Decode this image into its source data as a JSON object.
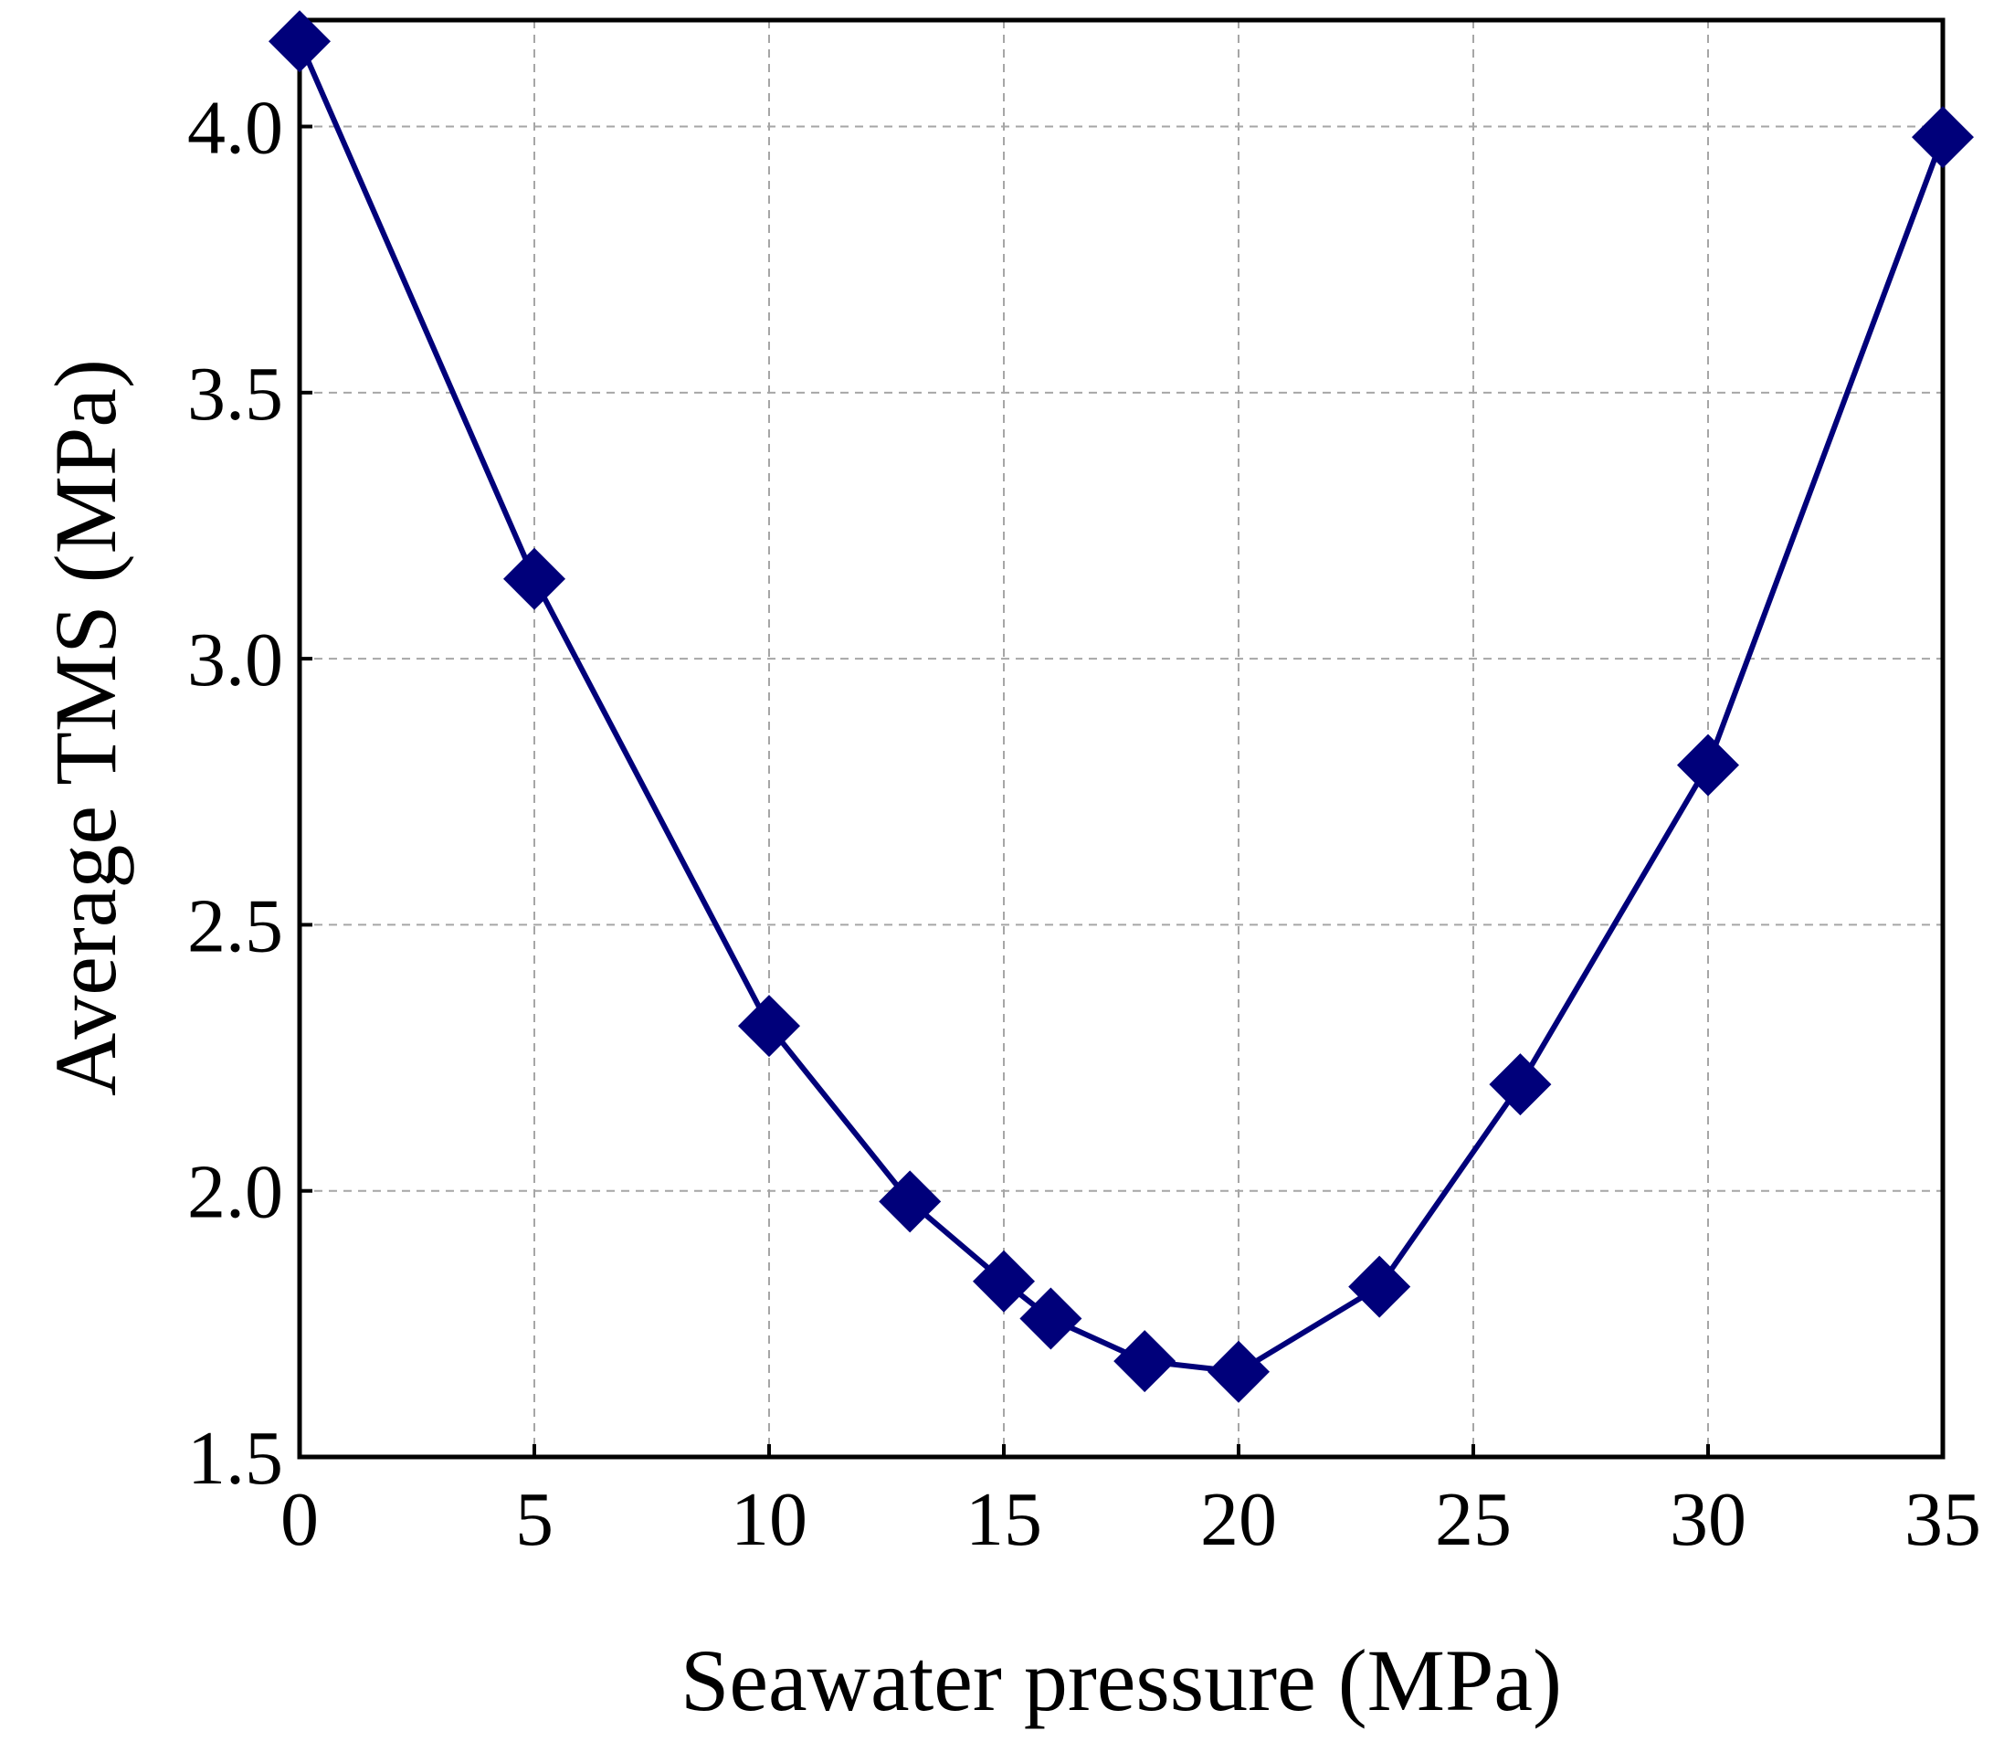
{
  "chart_data": {
    "type": "line",
    "title": "",
    "xlabel": "Seawater pressure (MPa)",
    "ylabel": "Average TMS (MPa)",
    "xlim": [
      0,
      35
    ],
    "ylim": [
      1.5,
      4.2
    ],
    "xticks": [
      0,
      5,
      10,
      15,
      20,
      25,
      30,
      35
    ],
    "xtick_labels": [
      "0",
      "5",
      "10",
      "15",
      "20",
      "25",
      "30",
      "35"
    ],
    "yticks": [
      1.5,
      2.0,
      2.5,
      3.0,
      3.5,
      4.0
    ],
    "ytick_labels": [
      "1.5",
      "2.0",
      "2.5",
      "3.0",
      "3.5",
      "4.0"
    ],
    "grid": true,
    "series": [
      {
        "name": "Average TMS",
        "color": "#00007a",
        "marker": "diamond",
        "x": [
          0,
          5,
          10,
          13,
          15,
          16,
          18,
          20,
          23,
          26,
          30,
          35
        ],
        "y": [
          4.16,
          3.15,
          2.31,
          1.98,
          1.83,
          1.76,
          1.68,
          1.66,
          1.82,
          2.2,
          2.8,
          3.98
        ]
      }
    ]
  }
}
